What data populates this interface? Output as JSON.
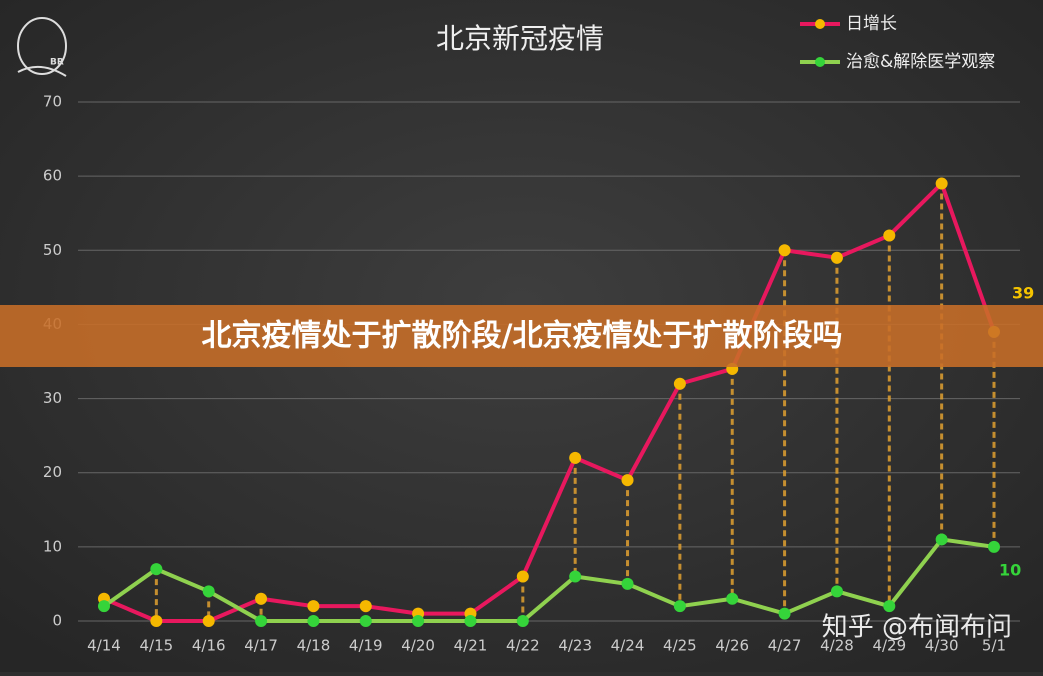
{
  "chart_data": {
    "type": "line",
    "title": "北京新冠疫情",
    "categories": [
      "4/14",
      "4/15",
      "4/16",
      "4/17",
      "4/18",
      "4/19",
      "4/20",
      "4/21",
      "4/22",
      "4/23",
      "4/24",
      "4/25",
      "4/26",
      "4/27",
      "4/28",
      "4/29",
      "4/30",
      "5/1"
    ],
    "series": [
      {
        "name": "日增长",
        "color": "#e8185e",
        "marker_color": "#f5b800",
        "values": [
          3,
          0,
          0,
          3,
          2,
          2,
          1,
          1,
          6,
          22,
          19,
          32,
          34,
          50,
          49,
          52,
          59,
          39
        ]
      },
      {
        "name": "治愈&解除医学观察",
        "color": "#8fd14f",
        "marker_color": "#35d43a",
        "values": [
          2,
          7,
          4,
          0,
          0,
          0,
          0,
          0,
          0,
          6,
          5,
          2,
          3,
          1,
          4,
          2,
          11,
          10
        ]
      }
    ],
    "ylim": [
      0,
      70
    ],
    "yticks": [
      0,
      10,
      20,
      30,
      40,
      50,
      60,
      70
    ],
    "grid": true,
    "legend": "top-right"
  },
  "banner": "北京疫情处于扩散阶段/北京疫情处于扩散阶段吗",
  "watermark": "知乎 @布闻布问",
  "logo": "BR"
}
